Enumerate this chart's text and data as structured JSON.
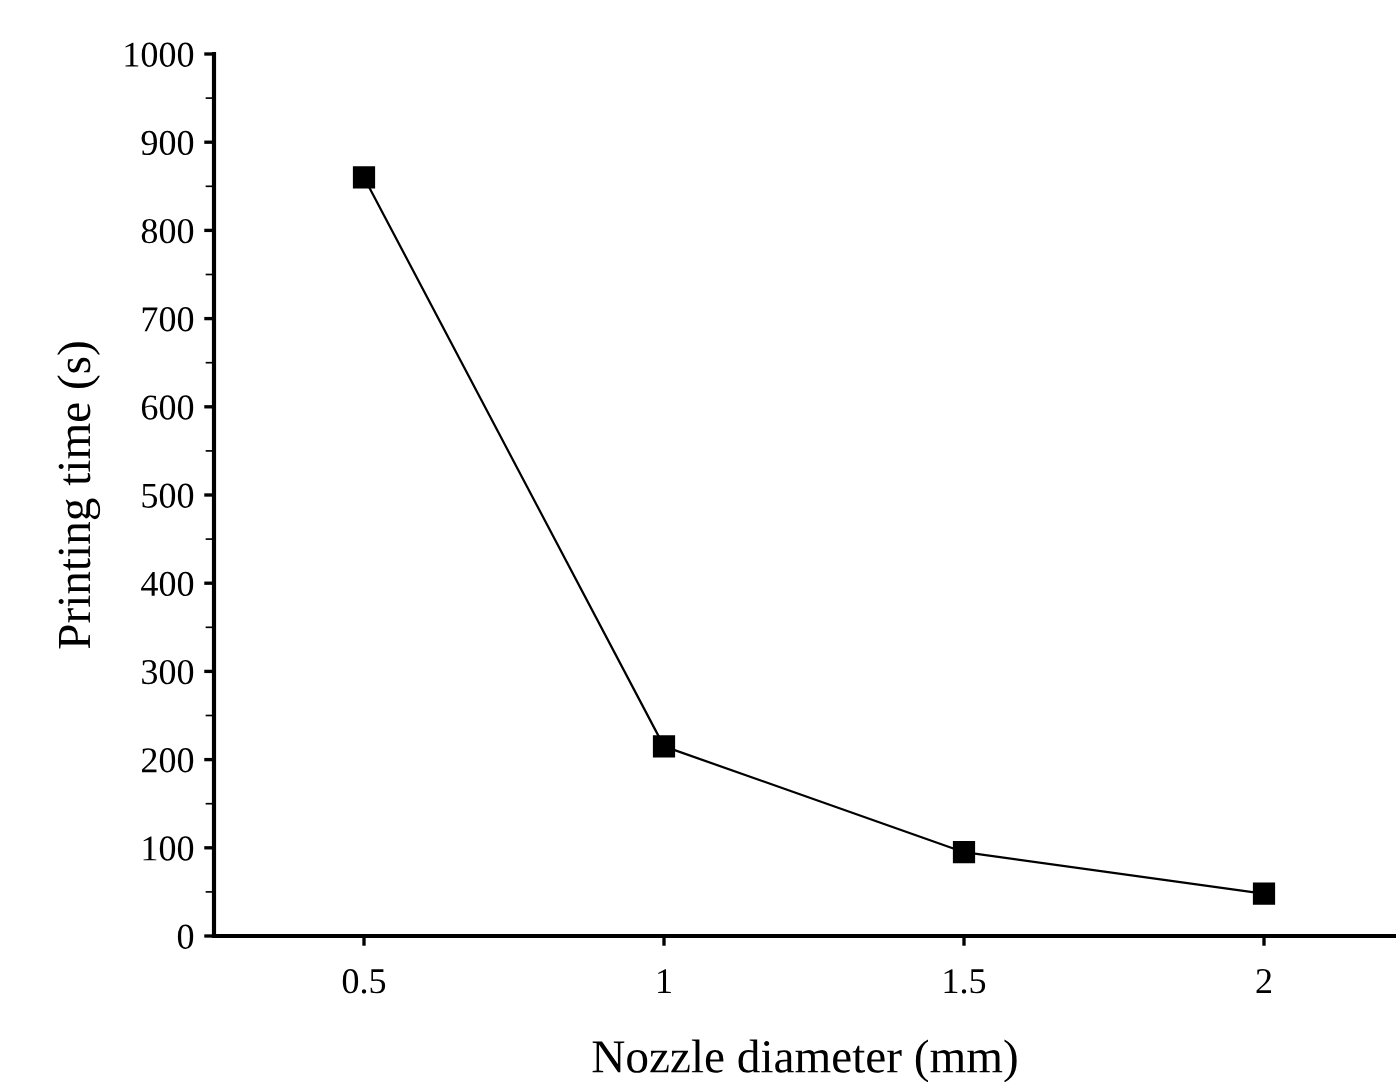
{
  "chart_data": {
    "type": "line",
    "xlabel": "Nozzle diameter (mm)",
    "ylabel": "Printing time (s)",
    "x": [
      0.5,
      1,
      1.5,
      2
    ],
    "series": [
      {
        "color": "#000000",
        "values": [
          860,
          215,
          95,
          48
        ]
      }
    ],
    "xlim": [
      0.25,
      2.22
    ],
    "xticks": [
      0.5,
      1,
      1.5,
      2
    ],
    "ylim": [
      0,
      1000
    ],
    "yticks": [
      0,
      100,
      200,
      300,
      400,
      500,
      600,
      700,
      800,
      900,
      1000
    ],
    "marker": "square",
    "line_style": "solid",
    "grid": false,
    "legend": false
  }
}
